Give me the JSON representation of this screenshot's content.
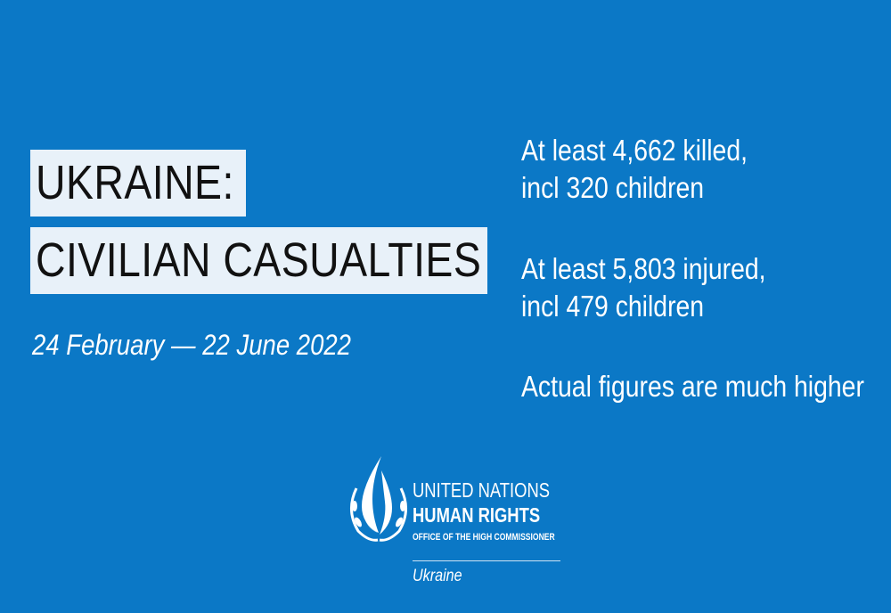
{
  "title": {
    "line1": "UKRAINE:",
    "line2": "CIVILIAN CASUALTIES"
  },
  "date_range": "24  February — 22 June 2022",
  "stats": [
    {
      "line1": "At least 4,662  killed,",
      "line2": "incl 320 children"
    },
    {
      "line1": "At least 5,803 injured,",
      "line2": "incl 479 children"
    },
    {
      "line1": "Actual figures are much higher"
    }
  ],
  "logo": {
    "line1": "UNITED NATIONS",
    "line2": "HUMAN RIGHTS",
    "line3": "OFFICE OF THE HIGH COMMISSIONER",
    "subtitle": "Ukraine",
    "icon": "un-human-rights-flame-emblem"
  },
  "colors": {
    "background": "#0b78c6",
    "title_box": "#e8f1f9",
    "title_text": "#111111",
    "text": "#ffffff"
  }
}
